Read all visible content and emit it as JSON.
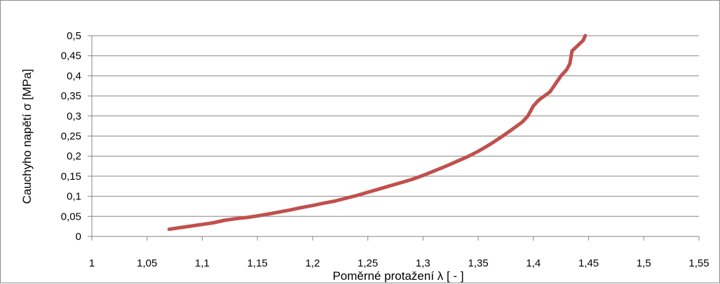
{
  "chart_data": {
    "type": "line",
    "title": "",
    "xlabel": "Poměrné protažení λ [ - ]",
    "ylabel": "Cauchyho napětí σ [MPa]",
    "xlim": [
      1,
      1.55
    ],
    "ylim": [
      0,
      0.5
    ],
    "x_ticks": [
      "1",
      "1,05",
      "1,1",
      "1,15",
      "1,2",
      "1,25",
      "1,3",
      "1,35",
      "1,4",
      "1,45",
      "1,5",
      "1,55"
    ],
    "y_ticks": [
      "0",
      "0,05",
      "0,1",
      "0,15",
      "0,2",
      "0,25",
      "0,3",
      "0,35",
      "0,4",
      "0,45",
      "0,5"
    ],
    "grid": "horizontal",
    "legend": "none",
    "series": [
      {
        "color": "#c0504d",
        "x": [
          1.07,
          1.08,
          1.09,
          1.1,
          1.11,
          1.12,
          1.13,
          1.14,
          1.15,
          1.16,
          1.17,
          1.18,
          1.19,
          1.2,
          1.21,
          1.22,
          1.23,
          1.24,
          1.25,
          1.26,
          1.27,
          1.28,
          1.29,
          1.3,
          1.31,
          1.32,
          1.33,
          1.34,
          1.35,
          1.36,
          1.37,
          1.38,
          1.39,
          1.395,
          1.4,
          1.405,
          1.41,
          1.415,
          1.42,
          1.425,
          1.43,
          1.433,
          1.435,
          1.44,
          1.445,
          1.447
        ],
        "y": [
          0.018,
          0.022,
          0.026,
          0.03,
          0.034,
          0.04,
          0.044,
          0.047,
          0.051,
          0.056,
          0.061,
          0.066,
          0.072,
          0.077,
          0.083,
          0.088,
          0.095,
          0.102,
          0.11,
          0.118,
          0.126,
          0.134,
          0.142,
          0.152,
          0.163,
          0.174,
          0.186,
          0.198,
          0.212,
          0.228,
          0.246,
          0.265,
          0.285,
          0.3,
          0.325,
          0.34,
          0.35,
          0.36,
          0.38,
          0.4,
          0.415,
          0.43,
          0.462,
          0.475,
          0.488,
          0.5
        ]
      }
    ]
  }
}
